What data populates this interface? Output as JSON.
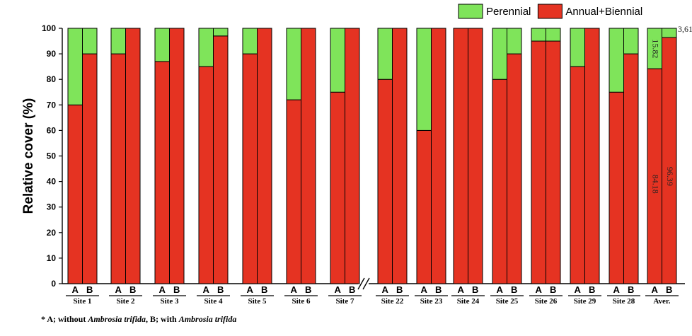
{
  "chart_data": {
    "type": "bar",
    "stacked": true,
    "ylabel": "Relative cover (%)",
    "ylim": [
      0,
      100
    ],
    "yticks": [
      0,
      10,
      20,
      30,
      40,
      50,
      60,
      70,
      80,
      90,
      100
    ],
    "sub_categories": [
      "A",
      "B"
    ],
    "categories": [
      "Site 1",
      "Site 2",
      "Site 3",
      "Site 4",
      "Site 5",
      "Site 6",
      "Site 7",
      "Site 22",
      "Site 23",
      "Site 24",
      "Site 25",
      "Site 26",
      "Site 29",
      "Site 28",
      "Aver."
    ],
    "axis_break_after": "Site 7",
    "series": [
      {
        "name": "Annual+Biennial",
        "color": "#e53322",
        "values": [
          [
            70,
            90
          ],
          [
            90,
            100
          ],
          [
            87,
            100
          ],
          [
            85,
            97
          ],
          [
            90,
            100
          ],
          [
            72,
            100
          ],
          [
            75,
            100
          ],
          [
            80,
            100
          ],
          [
            60,
            100
          ],
          [
            100,
            100
          ],
          [
            80,
            90
          ],
          [
            95,
            95
          ],
          [
            85,
            100
          ],
          [
            75,
            90
          ],
          [
            84.18,
            96.39
          ]
        ]
      },
      {
        "name": "Perennial",
        "color": "#7fe45a",
        "values": [
          [
            30,
            10
          ],
          [
            10,
            0
          ],
          [
            13,
            0
          ],
          [
            15,
            3
          ],
          [
            10,
            0
          ],
          [
            28,
            0
          ],
          [
            25,
            0
          ],
          [
            20,
            0
          ],
          [
            40,
            0
          ],
          [
            0,
            0
          ],
          [
            20,
            10
          ],
          [
            5,
            5
          ],
          [
            15,
            0
          ],
          [
            25,
            10
          ],
          [
            15.82,
            3.61
          ]
        ]
      }
    ],
    "legend": {
      "position": "top-right",
      "order": [
        "Perennial",
        "Annual+Biennial"
      ]
    },
    "data_labels": {
      "aver_a_perennial": "15.82",
      "aver_a_annual": "84.18",
      "aver_b_annual": "96.39",
      "aver_b_perennial": "3,61"
    }
  },
  "footnote": {
    "prefix": "* A; without ",
    "species1": "Ambrosia trifida",
    "middle": ",  B; with ",
    "species2": "Ambrosia trifida"
  }
}
